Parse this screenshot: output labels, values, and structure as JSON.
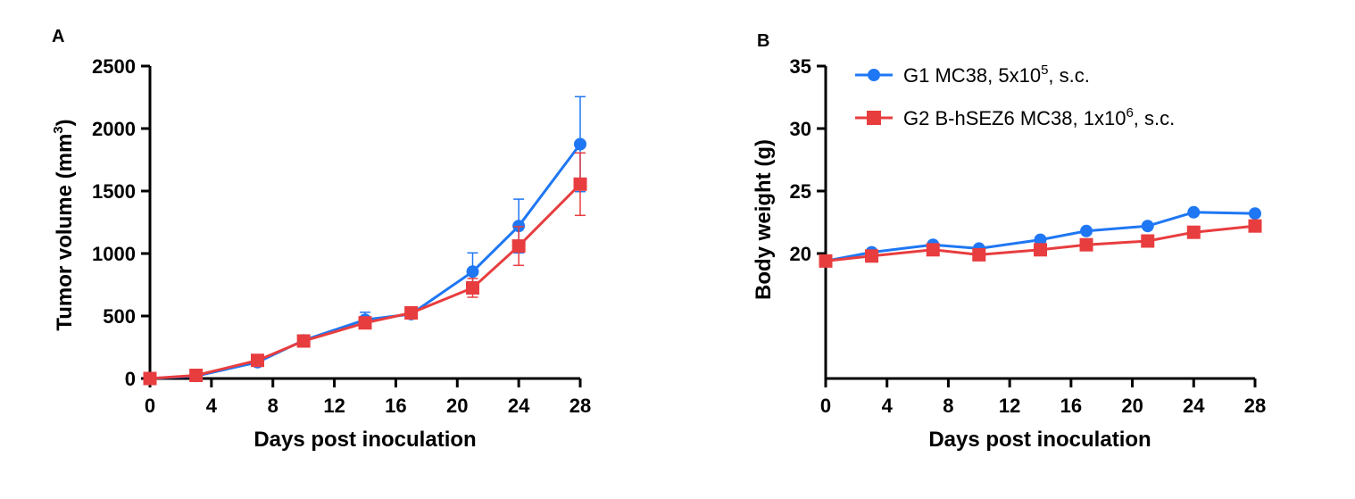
{
  "chart_data": [
    {
      "id": "A",
      "panel_label": "A",
      "type": "line",
      "xlabel": "Days post inoculation",
      "ylabel": "Tumor volume (mm",
      "ylabel_sup": "3",
      "ylabel_close": ")",
      "xlim": [
        0,
        28
      ],
      "ylim": [
        0,
        2500
      ],
      "xticks": [
        0,
        4,
        8,
        12,
        16,
        20,
        24,
        28
      ],
      "yticks": [
        0,
        500,
        1000,
        1500,
        2000,
        2500
      ],
      "grid": false,
      "x": [
        0,
        3,
        7,
        10,
        14,
        17,
        21,
        24,
        28
      ],
      "series": [
        {
          "name": "G1 MC38, 5x10^5, s.c.",
          "color": "#1f77f4",
          "marker": "circle",
          "values": [
            0,
            20,
            130,
            305,
            470,
            515,
            855,
            1220,
            1875
          ],
          "error": [
            0,
            5,
            15,
            25,
            60,
            30,
            150,
            215,
            380
          ]
        },
        {
          "name": "G2 B-hSEZ6 MC38, 1x10^6, s.c.",
          "color": "#e83d3f",
          "marker": "square",
          "values": [
            0,
            25,
            145,
            300,
            445,
            525,
            725,
            1060,
            1555
          ],
          "error": [
            0,
            5,
            20,
            25,
            30,
            30,
            75,
            155,
            250
          ]
        }
      ]
    },
    {
      "id": "B",
      "panel_label": "B",
      "type": "line",
      "xlabel": "Days post inoculation",
      "ylabel": "Body weight (g)",
      "xlim": [
        0,
        28
      ],
      "ylim": [
        10,
        35
      ],
      "xticks": [
        0,
        4,
        8,
        12,
        16,
        20,
        24,
        28
      ],
      "yticks": [
        20,
        25,
        30,
        35
      ],
      "grid": false,
      "legend_position": "top",
      "x": [
        0,
        3,
        7,
        10,
        14,
        17,
        21,
        24,
        28
      ],
      "series": [
        {
          "name": "G1 MC38, 5x10^5, s.c.",
          "color": "#1f77f4",
          "marker": "circle",
          "values": [
            19.4,
            20.1,
            20.7,
            20.4,
            21.1,
            21.8,
            22.2,
            23.3,
            23.2
          ]
        },
        {
          "name": "G2 B-hSEZ6 MC38, 1x10^6, s.c.",
          "color": "#e83d3f",
          "marker": "square",
          "values": [
            19.4,
            19.8,
            20.3,
            19.9,
            20.3,
            20.7,
            21.0,
            21.7,
            22.2
          ]
        }
      ]
    }
  ],
  "legend": [
    {
      "pre": "G1 MC38, 5x10",
      "sup": "5",
      "post": ", s.c.",
      "color": "#1f77f4",
      "marker": "circle"
    },
    {
      "pre": "G2 B-hSEZ6 MC38, 1x10",
      "sup": "6",
      "post": ", s.c.",
      "color": "#e83d3f",
      "marker": "square"
    }
  ]
}
